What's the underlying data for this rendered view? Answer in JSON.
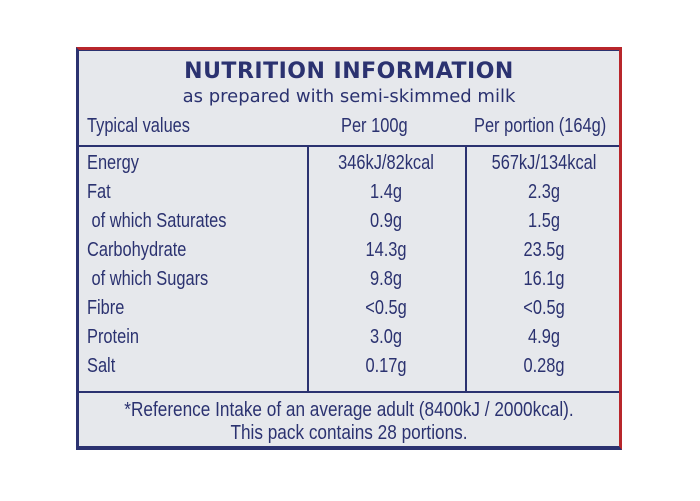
{
  "title": "NUTRITION INFORMATION",
  "subtitle": "as prepared with semi-skimmed milk",
  "header": {
    "col1": "Typical values",
    "col2": "Per 100g",
    "col3": "Per portion (164g)"
  },
  "rows": [
    {
      "label": "Energy",
      "per100g": "346kJ/82kcal",
      "perPortion": "567kJ/134kcal"
    },
    {
      "label": "Fat",
      "per100g": "1.4g",
      "perPortion": "2.3g"
    },
    {
      "label": " of which Saturates",
      "per100g": "0.9g",
      "perPortion": "1.5g"
    },
    {
      "label": "Carbohydrate",
      "per100g": "14.3g",
      "perPortion": "23.5g"
    },
    {
      "label": " of which Sugars",
      "per100g": "9.8g",
      "perPortion": "16.1g"
    },
    {
      "label": "Fibre",
      "per100g": "<0.5g",
      "perPortion": "<0.5g"
    },
    {
      "label": "Protein",
      "per100g": "3.0g",
      "perPortion": "4.9g"
    },
    {
      "label": "Salt",
      "per100g": "0.17g",
      "perPortion": "0.28g"
    }
  ],
  "footer": {
    "line1": "*Reference Intake of an average adult (8400kJ / 2000kcal).",
    "line2": "This pack contains 28 portions."
  },
  "colors": {
    "ink": "#2b3270",
    "background": "#e6e8ec",
    "packaging_edge": "#b8262b"
  }
}
